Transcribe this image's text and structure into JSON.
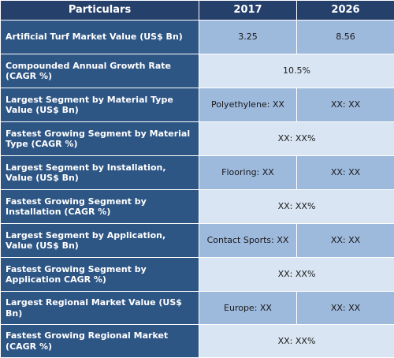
{
  "header": {
    "particulars": "Particulars",
    "year1": "2017",
    "year2": "2026"
  },
  "rows": [
    {
      "label": "Artificial Turf Market Value (US$ Bn)",
      "v2017": "3.25",
      "v2026": "8.56"
    },
    {
      "label": "Compounded Annual Growth Rate (CAGR %)",
      "merged": "10.5%"
    },
    {
      "label": "Largest Segment by Material Type Value (US$ Bn)",
      "v2017": "Polyethylene: XX",
      "v2026": "XX:  XX"
    },
    {
      "label": "Fastest Growing Segment by Material Type (CAGR %)",
      "merged": "XX:  XX%"
    },
    {
      "label": "Largest Segment by Installation, Value (US$ Bn)",
      "v2017": "Flooring: XX",
      "v2026": "XX:  XX"
    },
    {
      "label": "Fastest Growing Segment by Installation (CAGR %)",
      "merged": "XX:  XX%"
    },
    {
      "label": "Largest Segment by Application, Value (US$ Bn)",
      "v2017": "Contact Sports: XX",
      "v2026": "XX:  XX"
    },
    {
      "label": "Fastest Growing Segment by Application CAGR %)",
      "merged": "XX:  XX%"
    },
    {
      "label": "Largest Regional Market Value (US$ Bn)",
      "v2017": "Europe: XX",
      "v2026": "XX: XX"
    },
    {
      "label": "Fastest Growing Regional Market (CAGR %)",
      "merged": "XX: XX%"
    }
  ],
  "colors": {
    "header_bg": "#25406b",
    "label_bg": "#2e5685",
    "value_bg": "#9db9dc",
    "merged_bg": "#d9e5f2"
  }
}
